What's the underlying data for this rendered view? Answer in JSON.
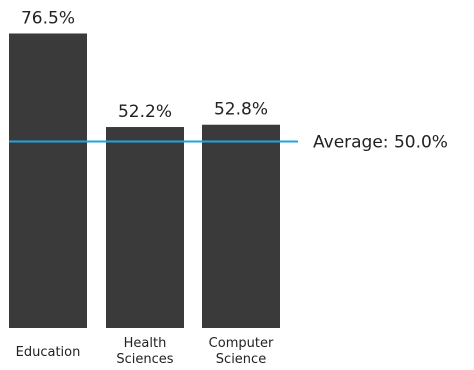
{
  "chart_data": {
    "type": "bar",
    "categories": [
      [
        "Education"
      ],
      [
        "Health",
        "Sciences"
      ],
      [
        "Computer",
        "Science"
      ]
    ],
    "values": [
      76.5,
      52.2,
      52.8
    ],
    "value_labels": [
      "76.5%",
      "52.2%",
      "52.8%"
    ],
    "ylim": [
      0,
      100
    ],
    "grid": false,
    "reference_line": {
      "value": 50.0,
      "label": "Average: 50.0%"
    },
    "colors": {
      "bar": "#3a3a3a",
      "reference_line": "#1ea5e0",
      "text": "#222222"
    }
  }
}
